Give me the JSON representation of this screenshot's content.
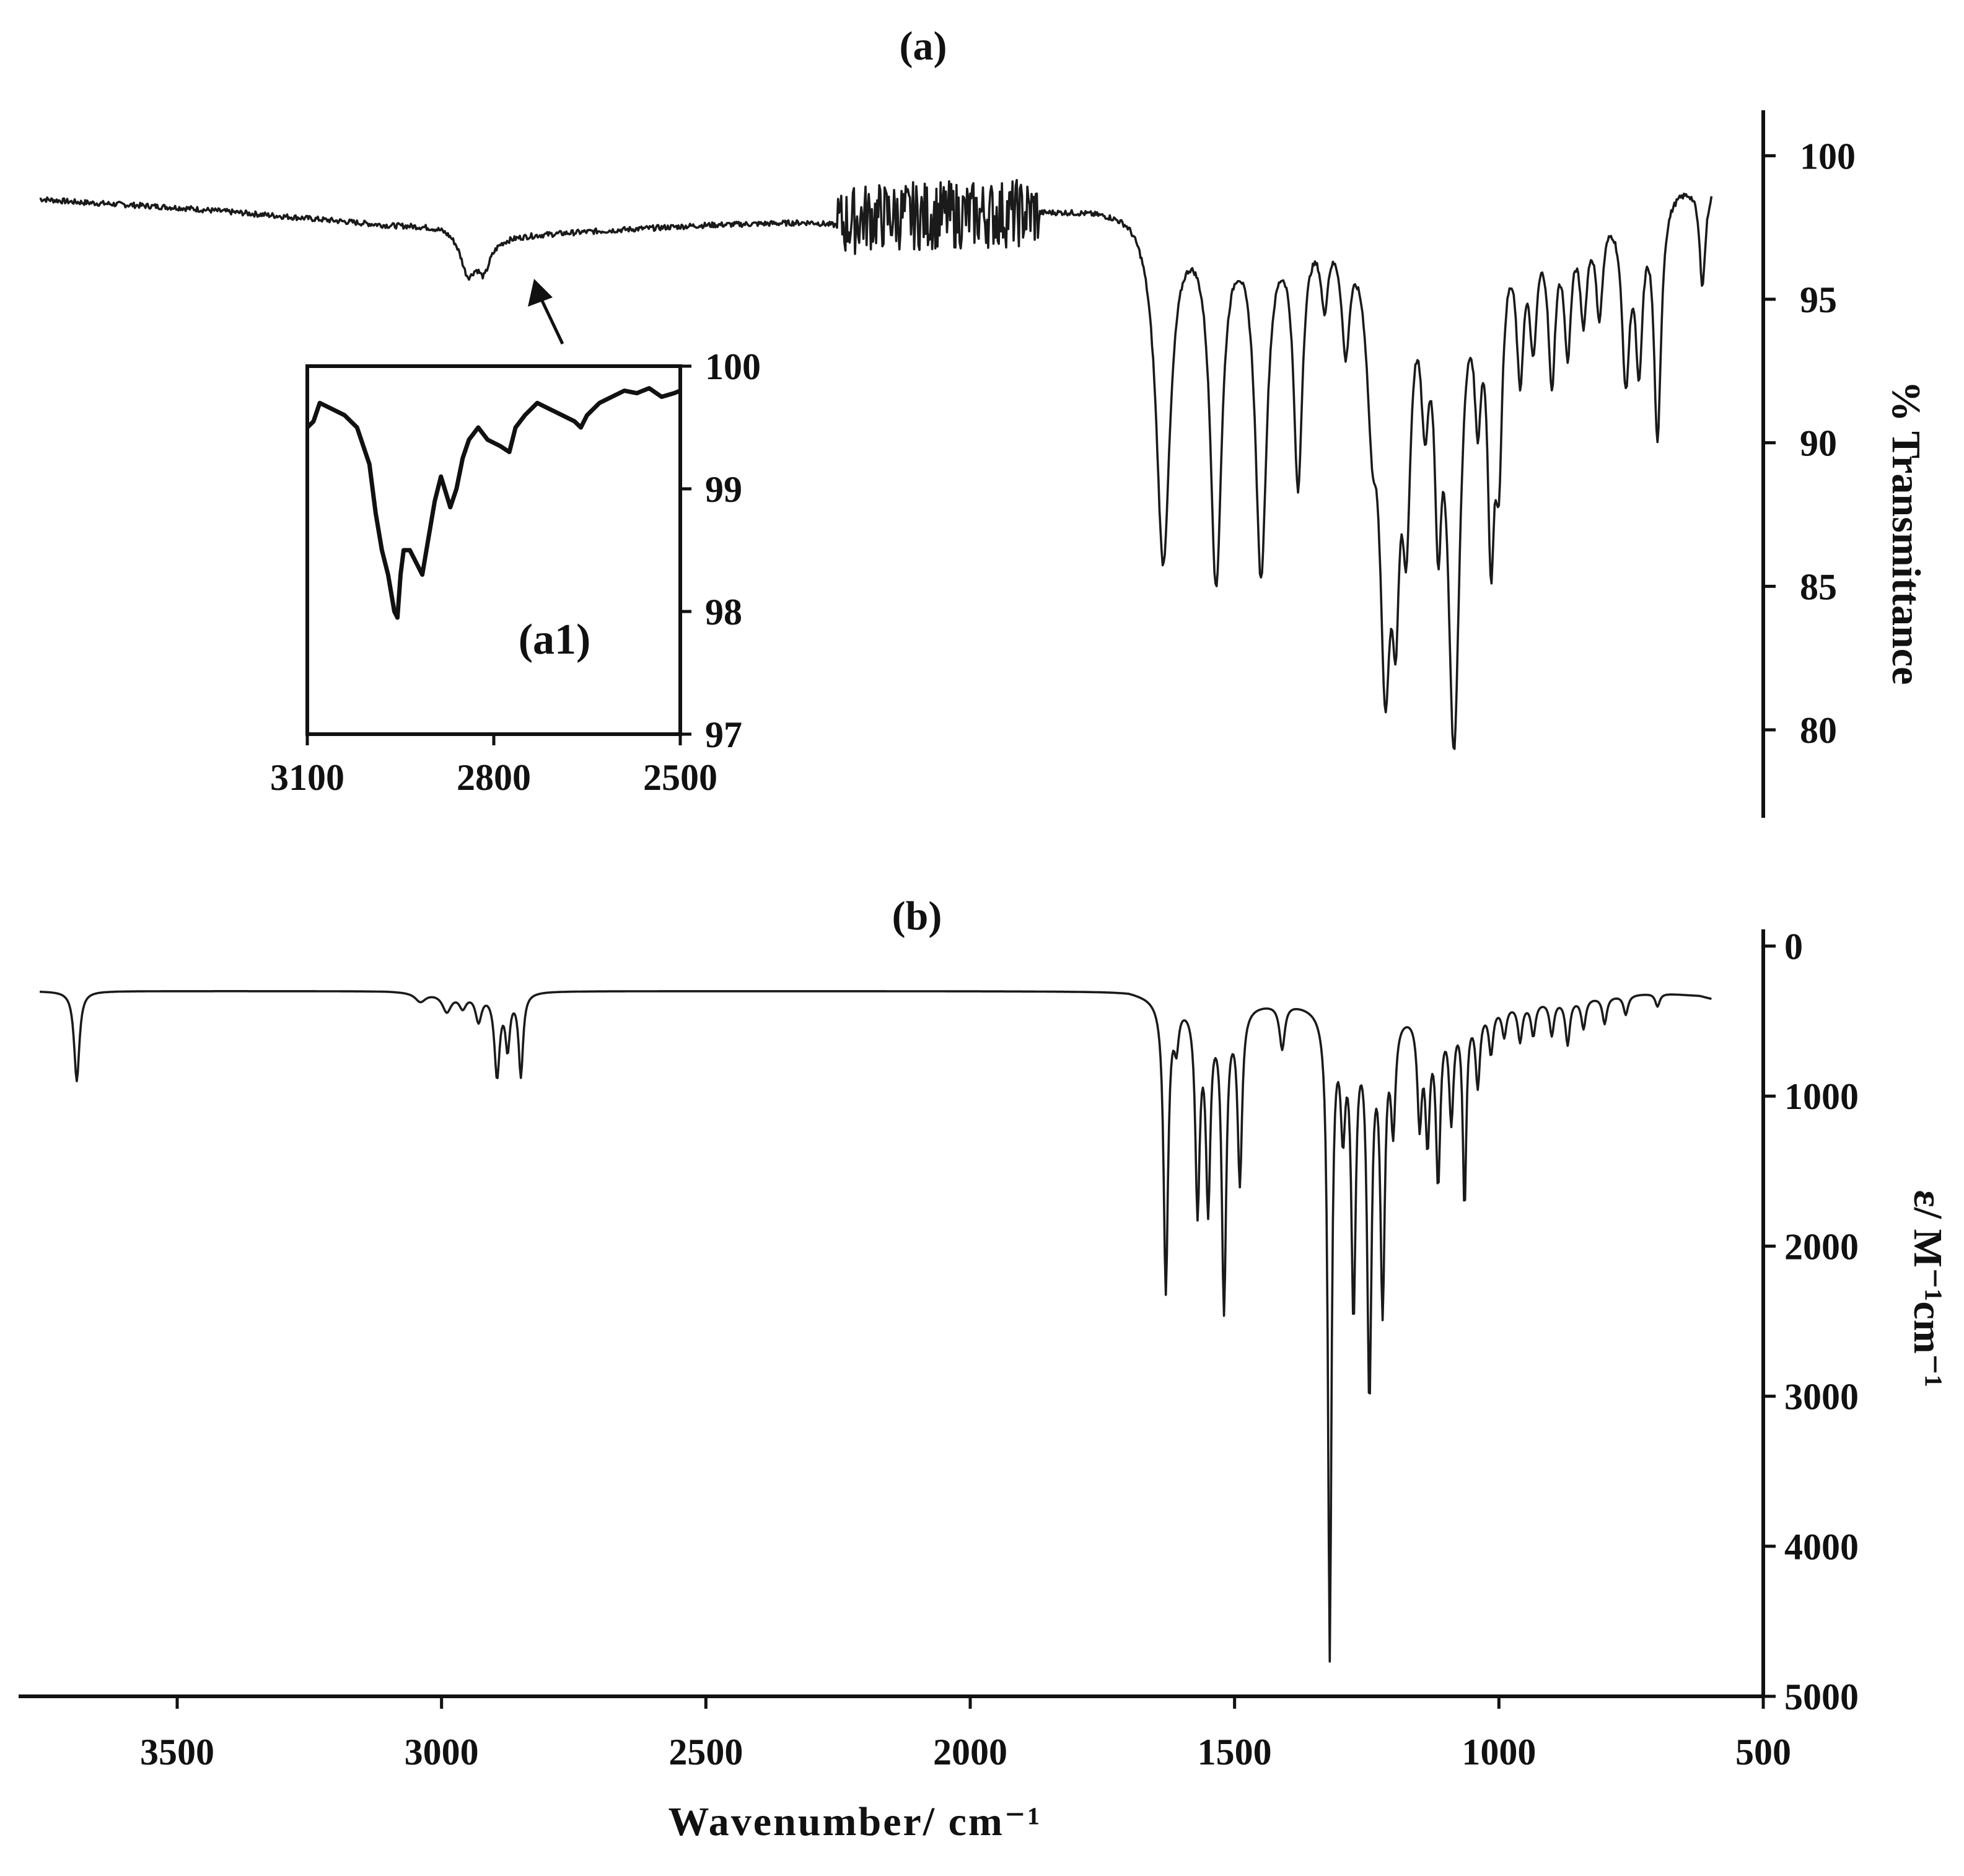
{
  "chart_data": [
    {
      "panel": "(a)",
      "type": "line",
      "title": "(a)",
      "xlabel": "Wavenumber/ cm⁻¹",
      "ylabel": "% Transmittance",
      "xlim": [
        3800,
        500
      ],
      "x_reversed": true,
      "ylim": [
        77,
        101
      ],
      "y_ticks": [
        80,
        85,
        90,
        95,
        100
      ],
      "grid": false,
      "noise_region": [
        2250,
        1870
      ],
      "baseline": [
        [
          3760,
          98.5
        ],
        [
          3700,
          98.4
        ],
        [
          3500,
          98.2
        ],
        [
          3300,
          97.9
        ],
        [
          3100,
          97.6
        ],
        [
          3000,
          97.6
        ],
        [
          2950,
          97.5
        ],
        [
          2900,
          97.2
        ],
        [
          2700,
          97.4
        ],
        [
          2500,
          97.6
        ],
        [
          2300,
          97.7
        ],
        [
          2250,
          97.6
        ],
        [
          2200,
          97.9
        ],
        [
          2000,
          98.0
        ],
        [
          1800,
          98.2
        ],
        [
          1700,
          98.3
        ],
        [
          1660,
          98.1
        ],
        [
          900,
          98.3
        ],
        [
          800,
          98.6
        ],
        [
          700,
          99.0
        ],
        [
          620,
          99.2
        ],
        [
          598,
          99.2
        ]
      ],
      "peaks": [
        {
          "x": 2950,
          "depth": 1.5,
          "width": 18
        },
        {
          "x": 2920,
          "depth": 1.1,
          "width": 14
        },
        {
          "x": 1635,
          "depth": 12.0,
          "width": 16
        },
        {
          "x": 1535,
          "depth": 12.5,
          "width": 13
        },
        {
          "x": 1450,
          "depth": 12.2,
          "width": 13
        },
        {
          "x": 1380,
          "depth": 9.0,
          "width": 10
        },
        {
          "x": 1330,
          "depth": 2.5,
          "width": 8
        },
        {
          "x": 1290,
          "depth": 4.0,
          "width": 9
        },
        {
          "x": 1240,
          "depth": 5.0,
          "width": 12
        },
        {
          "x": 1215,
          "depth": 14.0,
          "width": 13
        },
        {
          "x": 1195,
          "depth": 9.0,
          "width": 9
        },
        {
          "x": 1175,
          "depth": 8.5,
          "width": 10
        },
        {
          "x": 1140,
          "depth": 5.0,
          "width": 9
        },
        {
          "x": 1115,
          "depth": 8.0,
          "width": 8
        },
        {
          "x": 1085,
          "depth": 17.5,
          "width": 14
        },
        {
          "x": 1040,
          "depth": 5.0,
          "width": 8
        },
        {
          "x": 1015,
          "depth": 10.0,
          "width": 8
        },
        {
          "x": 1000,
          "depth": 7.0,
          "width": 8
        },
        {
          "x": 960,
          "depth": 5.0,
          "width": 8
        },
        {
          "x": 935,
          "depth": 4.0,
          "width": 8
        },
        {
          "x": 900,
          "depth": 5.5,
          "width": 8
        },
        {
          "x": 870,
          "depth": 4.5,
          "width": 8
        },
        {
          "x": 840,
          "depth": 3.5,
          "width": 8
        },
        {
          "x": 810,
          "depth": 3.5,
          "width": 8
        },
        {
          "x": 760,
          "depth": 6.0,
          "width": 9
        },
        {
          "x": 735,
          "depth": 5.5,
          "width": 8
        },
        {
          "x": 700,
          "depth": 8.5,
          "width": 8
        },
        {
          "x": 615,
          "depth": 3.5,
          "width": 7
        }
      ],
      "inset": {
        "label": "(a1)",
        "type": "line",
        "xlim": [
          3100,
          2500
        ],
        "x_ticks": [
          3100,
          2800,
          2500
        ],
        "ylim": [
          97,
          100
        ],
        "y_ticks": [
          97,
          98,
          99,
          100
        ],
        "points": [
          [
            3100,
            99.5
          ],
          [
            3090,
            99.55
          ],
          [
            3080,
            99.7
          ],
          [
            3060,
            99.65
          ],
          [
            3040,
            99.6
          ],
          [
            3020,
            99.5
          ],
          [
            3000,
            99.2
          ],
          [
            2990,
            98.8
          ],
          [
            2980,
            98.5
          ],
          [
            2970,
            98.3
          ],
          [
            2960,
            98.0
          ],
          [
            2955,
            97.95
          ],
          [
            2950,
            98.3
          ],
          [
            2945,
            98.5
          ],
          [
            2935,
            98.5
          ],
          [
            2925,
            98.4
          ],
          [
            2915,
            98.3
          ],
          [
            2905,
            98.6
          ],
          [
            2895,
            98.9
          ],
          [
            2885,
            99.1
          ],
          [
            2870,
            98.85
          ],
          [
            2860,
            99.0
          ],
          [
            2850,
            99.25
          ],
          [
            2840,
            99.4
          ],
          [
            2825,
            99.5
          ],
          [
            2810,
            99.4
          ],
          [
            2790,
            99.35
          ],
          [
            2775,
            99.3
          ],
          [
            2765,
            99.5
          ],
          [
            2750,
            99.6
          ],
          [
            2730,
            99.7
          ],
          [
            2710,
            99.65
          ],
          [
            2690,
            99.6
          ],
          [
            2670,
            99.55
          ],
          [
            2660,
            99.5
          ],
          [
            2650,
            99.6
          ],
          [
            2630,
            99.7
          ],
          [
            2610,
            99.75
          ],
          [
            2590,
            99.8
          ],
          [
            2570,
            99.78
          ],
          [
            2550,
            99.82
          ],
          [
            2530,
            99.75
          ],
          [
            2510,
            99.78
          ],
          [
            2500,
            99.8
          ]
        ]
      }
    },
    {
      "panel": "(b)",
      "type": "line",
      "title": "(b)",
      "xlabel": "Wavenumber/ cm⁻¹",
      "ylabel": "ε/ M⁻¹cm⁻¹",
      "xlim": [
        3800,
        500
      ],
      "x_ticks": [
        3500,
        3000,
        2500,
        2000,
        1500,
        1000,
        500
      ],
      "x_reversed": true,
      "ylim": [
        0,
        5000
      ],
      "y_ticks": [
        0,
        1000,
        2000,
        3000,
        4000,
        5000
      ],
      "y_inverted": true,
      "grid": false,
      "baseline": [
        [
          3760,
          300
        ],
        [
          3700,
          300
        ],
        [
          3100,
          300
        ],
        [
          3000,
          310
        ],
        [
          2800,
          300
        ],
        [
          1700,
          300
        ],
        [
          1650,
          330
        ],
        [
          1500,
          380
        ],
        [
          1400,
          360
        ],
        [
          1300,
          400
        ],
        [
          1200,
          420
        ],
        [
          1000,
          380
        ],
        [
          900,
          350
        ],
        [
          800,
          330
        ],
        [
          700,
          310
        ],
        [
          620,
          330
        ],
        [
          598,
          350
        ]
      ],
      "peaks": [
        {
          "x": 3690,
          "depth": 600,
          "width": 6
        },
        {
          "x": 3040,
          "depth": 60,
          "width": 12
        },
        {
          "x": 2990,
          "depth": 120,
          "width": 10
        },
        {
          "x": 2960,
          "depth": 90,
          "width": 8
        },
        {
          "x": 2930,
          "depth": 180,
          "width": 7
        },
        {
          "x": 2895,
          "depth": 550,
          "width": 6
        },
        {
          "x": 2875,
          "depth": 350,
          "width": 5
        },
        {
          "x": 2850,
          "depth": 550,
          "width": 5
        },
        {
          "x": 1630,
          "depth": 1950,
          "width": 5
        },
        {
          "x": 1610,
          "depth": 250,
          "width": 5
        },
        {
          "x": 1570,
          "depth": 1350,
          "width": 5
        },
        {
          "x": 1550,
          "depth": 1300,
          "width": 5
        },
        {
          "x": 1520,
          "depth": 2000,
          "width": 5
        },
        {
          "x": 1490,
          "depth": 1150,
          "width": 5
        },
        {
          "x": 1410,
          "depth": 300,
          "width": 6
        },
        {
          "x": 1320,
          "depth": 4300,
          "width": 4
        },
        {
          "x": 1295,
          "depth": 700,
          "width": 5
        },
        {
          "x": 1275,
          "depth": 1950,
          "width": 5
        },
        {
          "x": 1245,
          "depth": 2500,
          "width": 5
        },
        {
          "x": 1220,
          "depth": 1900,
          "width": 5
        },
        {
          "x": 1200,
          "depth": 700,
          "width": 5
        },
        {
          "x": 1150,
          "depth": 700,
          "width": 5
        },
        {
          "x": 1135,
          "depth": 800,
          "width": 5
        },
        {
          "x": 1115,
          "depth": 1100,
          "width": 5
        },
        {
          "x": 1090,
          "depth": 700,
          "width": 5
        },
        {
          "x": 1065,
          "depth": 1300,
          "width": 4
        },
        {
          "x": 1040,
          "depth": 500,
          "width": 5
        },
        {
          "x": 1015,
          "depth": 300,
          "width": 5
        },
        {
          "x": 990,
          "depth": 200,
          "width": 5
        },
        {
          "x": 960,
          "depth": 250,
          "width": 5
        },
        {
          "x": 935,
          "depth": 220,
          "width": 5
        },
        {
          "x": 900,
          "depth": 230,
          "width": 5
        },
        {
          "x": 870,
          "depth": 300,
          "width": 5
        },
        {
          "x": 840,
          "depth": 200,
          "width": 5
        },
        {
          "x": 800,
          "depth": 180,
          "width": 5
        },
        {
          "x": 760,
          "depth": 130,
          "width": 5
        },
        {
          "x": 700,
          "depth": 90,
          "width": 5
        }
      ]
    }
  ]
}
